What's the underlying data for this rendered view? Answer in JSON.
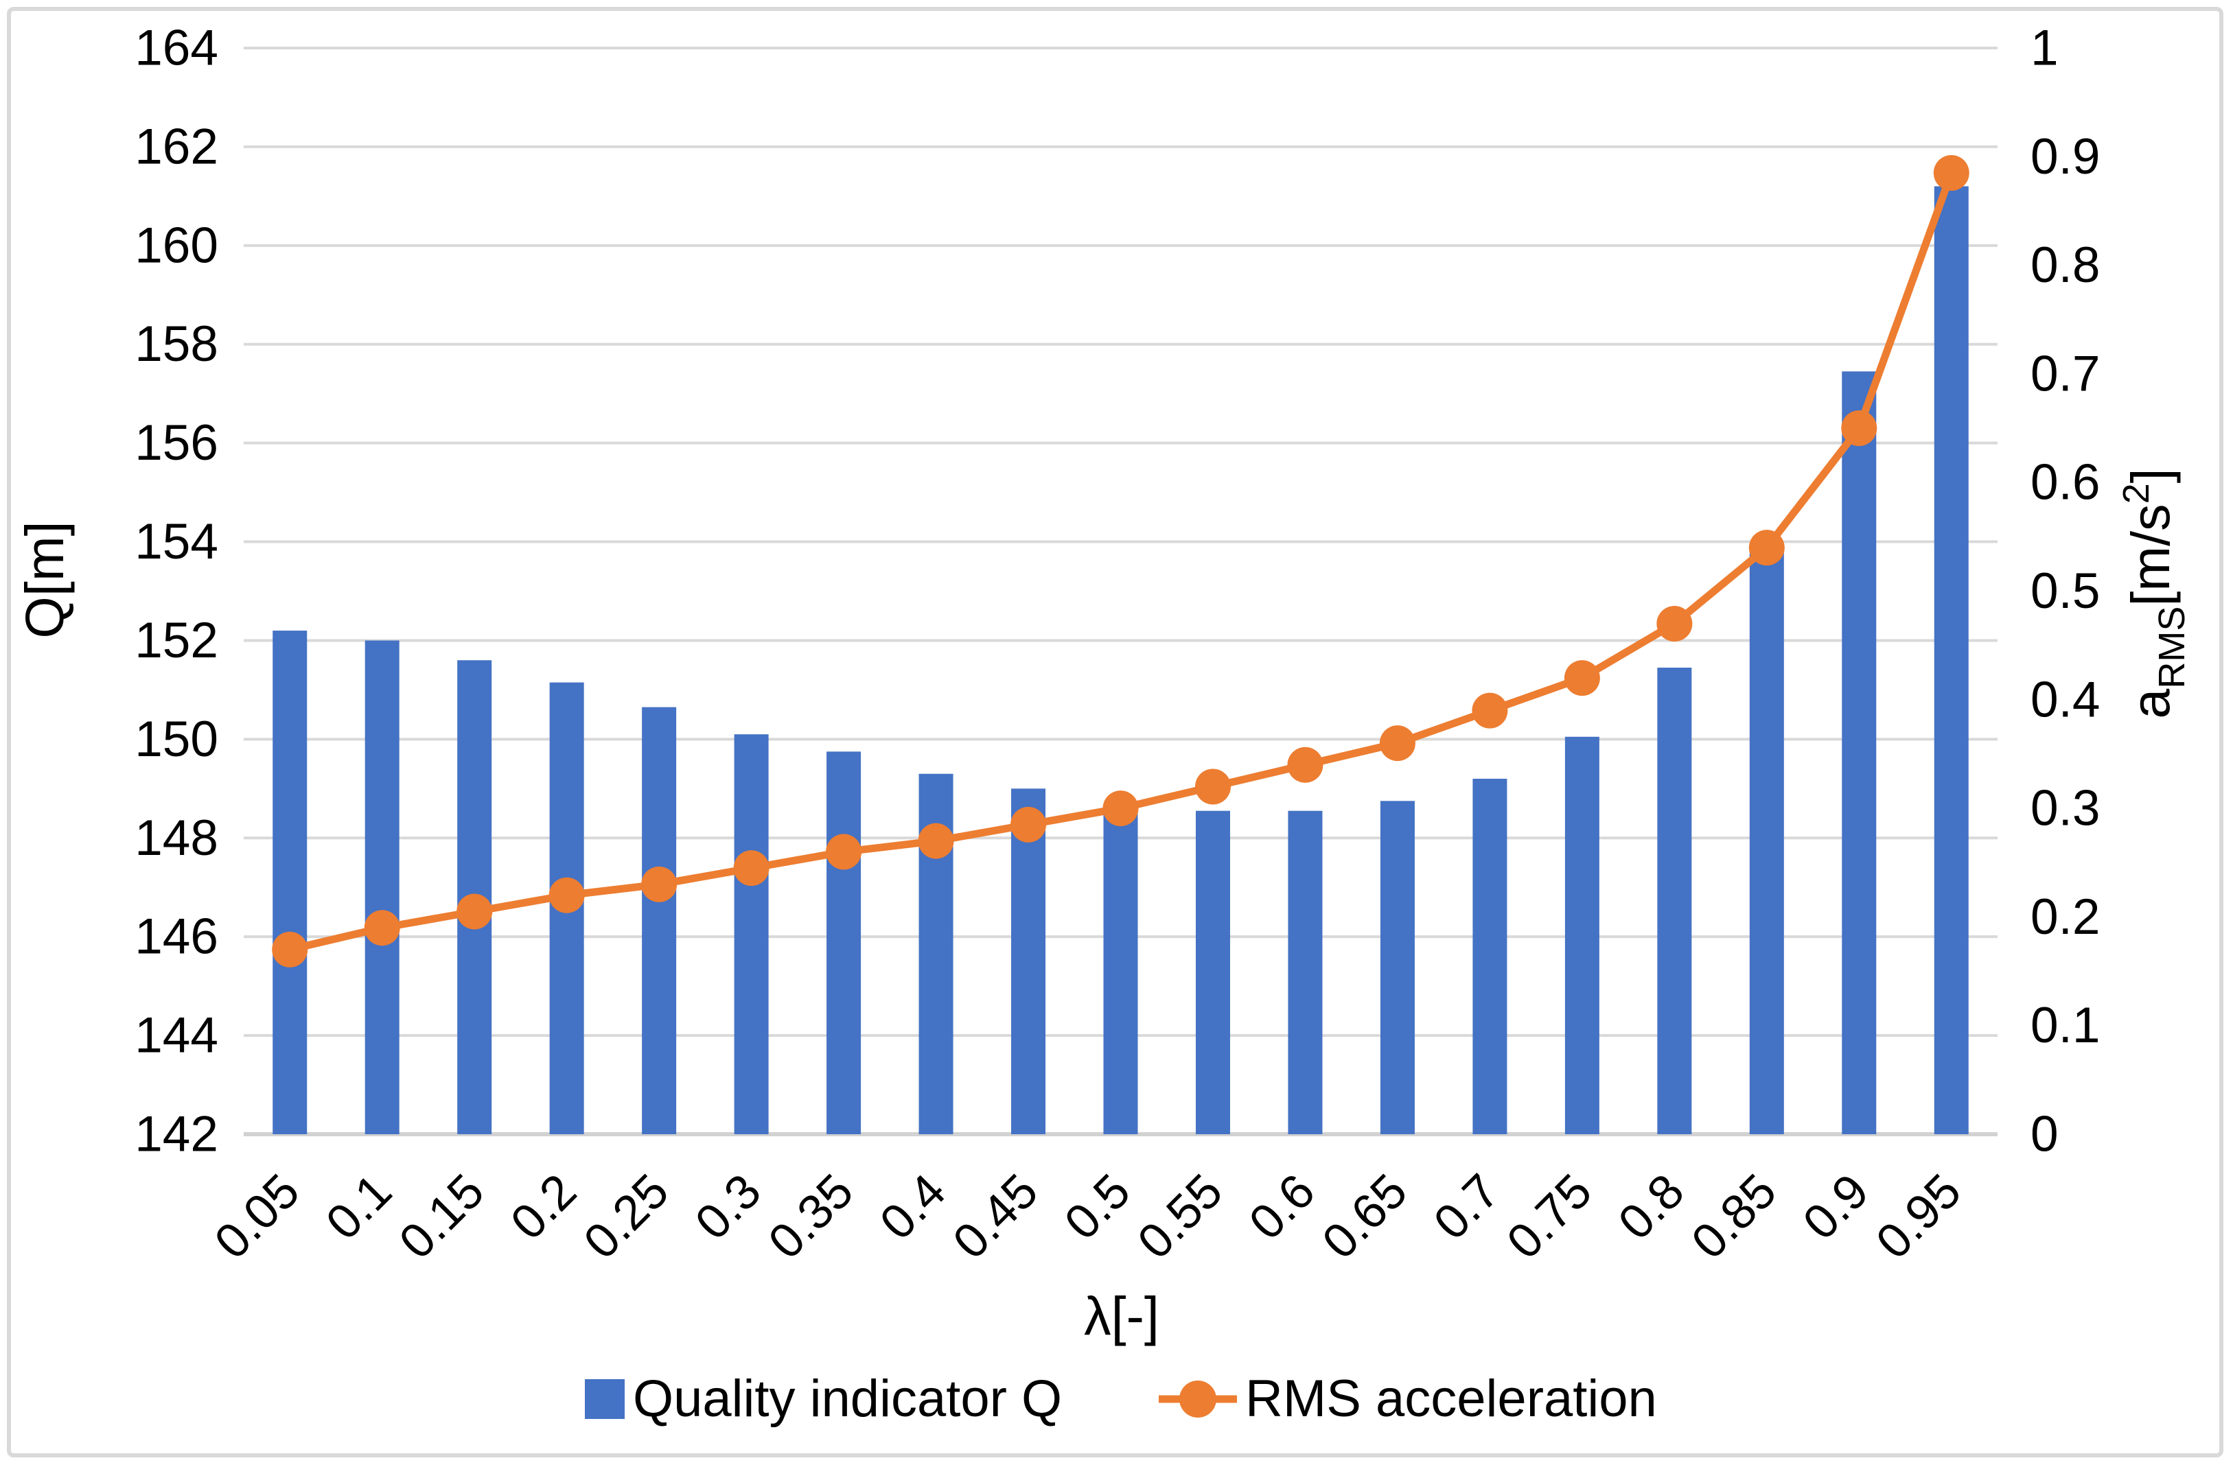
{
  "figure": {
    "background": "#FFFFFF",
    "border_color": "#D9D9D9"
  },
  "colors": {
    "bar": "#4472C4",
    "line": "#ED7D31",
    "grid": "#D9D9D9",
    "axis_line": "#D2D2D2",
    "text": "#000000"
  },
  "chart_data": {
    "type": "combo-bar-line",
    "categories": [
      "0.05",
      "0.1",
      "0.15",
      "0.2",
      "0.25",
      "0.3",
      "0.35",
      "0.4",
      "0.45",
      "0.5",
      "0.55",
      "0.6",
      "0.65",
      "0.7",
      "0.75",
      "0.8",
      "0.85",
      "0.9",
      "0.95"
    ],
    "series": [
      {
        "name": "Quality indicator Q",
        "type": "bar",
        "axis": "left",
        "color": "#4472C4",
        "values": [
          152.2,
          152.0,
          151.6,
          151.15,
          150.65,
          150.1,
          149.75,
          149.3,
          149.0,
          148.65,
          148.55,
          148.55,
          148.75,
          149.2,
          150.05,
          151.45,
          153.8,
          157.45,
          161.2
        ]
      },
      {
        "name": "RMS acceleration",
        "type": "line",
        "axis": "right",
        "color": "#ED7D31",
        "marker": "circle",
        "values": [
          0.17,
          0.19,
          0.205,
          0.22,
          0.23,
          0.245,
          0.26,
          0.27,
          0.285,
          0.3,
          0.32,
          0.34,
          0.36,
          0.39,
          0.42,
          0.47,
          0.54,
          0.65,
          0.885
        ]
      }
    ],
    "x_axis": {
      "title": "λ[-]",
      "tick_labels": [
        "0.05",
        "0.1",
        "0.15",
        "0.2",
        "0.25",
        "0.3",
        "0.35",
        "0.4",
        "0.45",
        "0.5",
        "0.55",
        "0.6",
        "0.65",
        "0.7",
        "0.75",
        "0.8",
        "0.85",
        "0.9",
        "0.95"
      ],
      "tick_rotation_deg": -45
    },
    "left_axis": {
      "title": "Q[m]",
      "min": 142,
      "max": 164,
      "step": 2,
      "tick_labels": [
        "142",
        "144",
        "146",
        "148",
        "150",
        "152",
        "154",
        "156",
        "158",
        "160",
        "162",
        "164"
      ]
    },
    "right_axis": {
      "title": "aRMS[m/s2]",
      "title_parts": {
        "base": "a",
        "sub": "RMS",
        "unit_open": "[m/s",
        "sup": "2",
        "unit_close": "]"
      },
      "min": 0,
      "max": 1,
      "step": 0.1,
      "tick_labels": [
        "0",
        "0.1",
        "0.2",
        "0.3",
        "0.4",
        "0.5",
        "0.6",
        "0.7",
        "0.8",
        "0.9",
        "1"
      ]
    },
    "gridlines": {
      "show": true,
      "color": "#D9D9D9"
    },
    "legend": {
      "position": "bottom"
    }
  }
}
